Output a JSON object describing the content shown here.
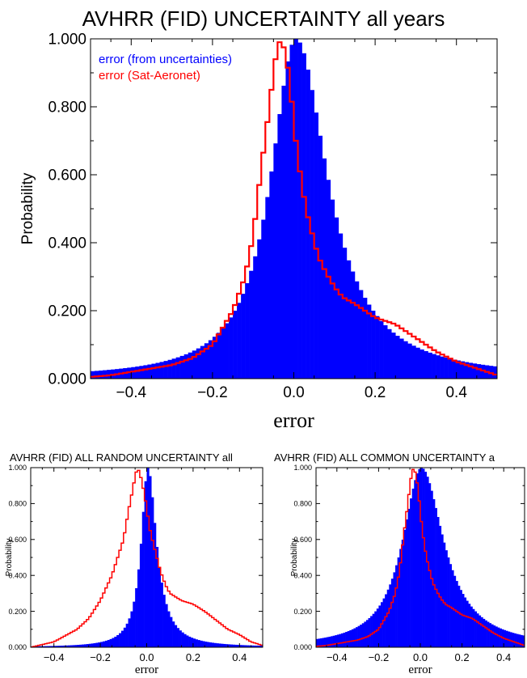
{
  "chart_data": [
    {
      "type": "histogram",
      "title": "AVHRR (FID) UNCERTAINTY all years",
      "xlabel": "error",
      "ylabel": "Probability",
      "xlim": [
        -0.5,
        0.5
      ],
      "ylim": [
        0,
        1.0
      ],
      "xticks": [
        "−0.4",
        "−0.2",
        "0.0",
        "0.2",
        "0.4"
      ],
      "yticks": [
        "0.000",
        "0.200",
        "0.400",
        "0.600",
        "0.800",
        "1.000"
      ],
      "legend_position": "top-left",
      "series": [
        {
          "name": "error (from uncertainties)",
          "style": "filled",
          "color": "#0000ff",
          "shape": {
            "center": 0.005,
            "gamma_left": 0.075,
            "gamma_right": 0.095
          }
        },
        {
          "name": "error (Sat-Aeronet)",
          "style": "step",
          "color": "#ff0000",
          "x": [
            -0.5,
            -0.45,
            -0.4,
            -0.35,
            -0.3,
            -0.25,
            -0.2,
            -0.15,
            -0.12,
            -0.1,
            -0.08,
            -0.06,
            -0.05,
            -0.04,
            -0.03,
            -0.02,
            -0.01,
            0.0,
            0.01,
            0.02,
            0.03,
            0.04,
            0.06,
            0.08,
            0.1,
            0.12,
            0.15,
            0.2,
            0.25,
            0.3,
            0.35,
            0.4,
            0.45,
            0.5
          ],
          "y": [
            0.005,
            0.01,
            0.02,
            0.03,
            0.04,
            0.06,
            0.1,
            0.2,
            0.3,
            0.42,
            0.62,
            0.8,
            0.9,
            0.98,
            1.0,
            0.95,
            0.88,
            0.75,
            0.65,
            0.57,
            0.5,
            0.45,
            0.36,
            0.31,
            0.27,
            0.24,
            0.22,
            0.18,
            0.16,
            0.12,
            0.08,
            0.05,
            0.03,
            0.01
          ]
        }
      ]
    },
    {
      "type": "histogram",
      "title": "AVHRR (FID) ALL RANDOM UNCERTAINTY all",
      "xlabel": "error",
      "ylabel": "Probability",
      "xlim": [
        -0.5,
        0.5
      ],
      "ylim": [
        0,
        1.0
      ],
      "xticks": [
        "−0.4",
        "−0.2",
        "0.0",
        "0.2",
        "0.4"
      ],
      "yticks": [
        "0.000",
        "0.200",
        "0.400",
        "0.600",
        "0.800",
        "1.000"
      ],
      "series": [
        {
          "style": "filled",
          "color": "#0000ff",
          "shape": {
            "center": 0.005,
            "gamma_left": 0.035,
            "gamma_right": 0.045
          }
        },
        {
          "style": "step",
          "color": "#ff0000",
          "x": [
            -0.5,
            -0.4,
            -0.3,
            -0.25,
            -0.2,
            -0.15,
            -0.1,
            -0.08,
            -0.06,
            -0.05,
            -0.04,
            -0.03,
            -0.02,
            -0.01,
            0.0,
            0.01,
            0.02,
            0.04,
            0.06,
            0.08,
            0.1,
            0.15,
            0.2,
            0.25,
            0.3,
            0.35,
            0.4,
            0.45,
            0.5
          ],
          "y": [
            0.0,
            0.03,
            0.1,
            0.16,
            0.26,
            0.4,
            0.6,
            0.75,
            0.88,
            0.95,
            1.0,
            0.97,
            0.92,
            0.85,
            0.78,
            0.68,
            0.62,
            0.52,
            0.42,
            0.35,
            0.3,
            0.26,
            0.24,
            0.2,
            0.15,
            0.1,
            0.07,
            0.03,
            0.01
          ]
        }
      ]
    },
    {
      "type": "histogram",
      "title": "AVHRR (FID) ALL COMMON UNCERTAINTY a",
      "xlabel": "error",
      "ylabel": "Probability",
      "xlim": [
        -0.5,
        0.5
      ],
      "ylim": [
        0,
        1.0
      ],
      "xticks": [
        "−0.4",
        "−0.2",
        "0.0",
        "0.2",
        "0.4"
      ],
      "yticks": [
        "0.000",
        "0.200",
        "0.400",
        "0.600",
        "0.800",
        "1.000"
      ],
      "series": [
        {
          "style": "filled",
          "color": "#0000ff",
          "shape": {
            "center": 0.005,
            "gamma_left": 0.11,
            "gamma_right": 0.13
          }
        },
        {
          "style": "step",
          "color": "#ff0000",
          "x": [
            -0.5,
            -0.45,
            -0.4,
            -0.35,
            -0.3,
            -0.25,
            -0.2,
            -0.15,
            -0.12,
            -0.1,
            -0.08,
            -0.06,
            -0.05,
            -0.04,
            -0.03,
            -0.02,
            -0.01,
            0.0,
            0.01,
            0.02,
            0.03,
            0.04,
            0.06,
            0.08,
            0.1,
            0.12,
            0.15,
            0.2,
            0.25,
            0.3,
            0.35,
            0.4,
            0.45,
            0.5
          ],
          "y": [
            0.005,
            0.01,
            0.02,
            0.03,
            0.04,
            0.06,
            0.1,
            0.2,
            0.3,
            0.42,
            0.62,
            0.8,
            0.9,
            0.98,
            1.0,
            0.95,
            0.88,
            0.75,
            0.65,
            0.57,
            0.5,
            0.45,
            0.36,
            0.31,
            0.27,
            0.24,
            0.22,
            0.18,
            0.16,
            0.12,
            0.08,
            0.05,
            0.03,
            0.01
          ]
        }
      ]
    }
  ]
}
